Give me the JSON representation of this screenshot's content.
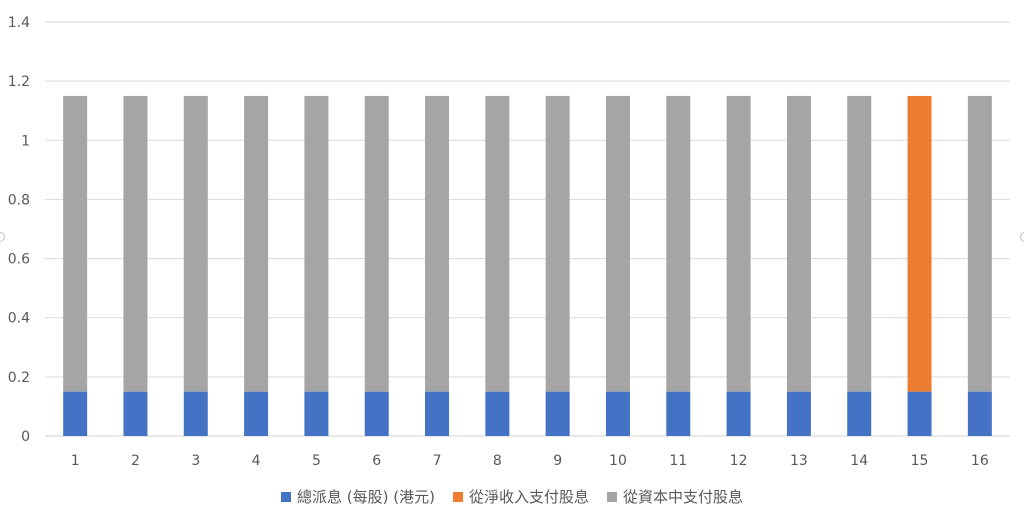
{
  "chart_data": {
    "type": "bar",
    "stacked": true,
    "categories": [
      "1",
      "2",
      "3",
      "4",
      "5",
      "6",
      "7",
      "8",
      "9",
      "10",
      "11",
      "12",
      "13",
      "14",
      "15",
      "16"
    ],
    "series": [
      {
        "name": "總派息 (每股) (港元)",
        "color": "#4472C4",
        "values": [
          0.15,
          0.15,
          0.15,
          0.15,
          0.15,
          0.15,
          0.15,
          0.15,
          0.15,
          0.15,
          0.15,
          0.15,
          0.15,
          0.15,
          0.15,
          0.15
        ]
      },
      {
        "name": "從淨收入支付股息",
        "color": "#ED7D31",
        "values": [
          0,
          0,
          0,
          0,
          0,
          0,
          0,
          0,
          0,
          0,
          0,
          0,
          0,
          0,
          1.0,
          0
        ]
      },
      {
        "name": "從資本中支付股息",
        "color": "#A5A5A5",
        "values": [
          1.0,
          1.0,
          1.0,
          1.0,
          1.0,
          1.0,
          1.0,
          1.0,
          1.0,
          1.0,
          1.0,
          1.0,
          1.0,
          1.0,
          0,
          1.0
        ]
      }
    ],
    "yticks": [
      "0",
      "0.2",
      "0.4",
      "0.6",
      "0.8",
      "1",
      "1.2",
      "1.4"
    ],
    "ylim": [
      0,
      1.4
    ],
    "grid": true,
    "legend_position": "bottom"
  }
}
